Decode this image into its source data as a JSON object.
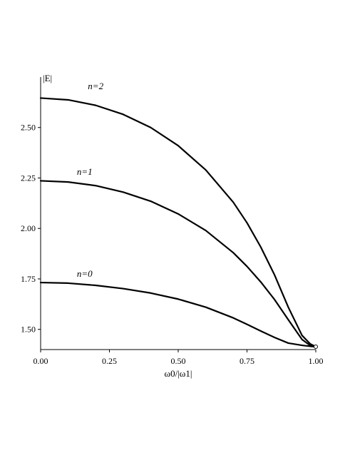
{
  "chart_data": {
    "type": "line",
    "xlabel": "ω0/|ω1|",
    "ylabel": "|E|",
    "xlim": [
      0,
      1
    ],
    "ylim": [
      1.4,
      2.75
    ],
    "x_ticks": [
      "0.00",
      "0.25",
      "0.50",
      "0.75",
      "1.00"
    ],
    "y_ticks": [
      "1.50",
      "1.75",
      "2.00",
      "2.25",
      "2.50"
    ],
    "grid": false,
    "series": [
      {
        "name": "n=0",
        "x": [
          0,
          0.1,
          0.2,
          0.3,
          0.4,
          0.5,
          0.6,
          0.7,
          0.75,
          0.8,
          0.85,
          0.9,
          0.95,
          0.98,
          1.0
        ],
        "y": [
          1.732,
          1.729,
          1.718,
          1.702,
          1.68,
          1.65,
          1.61,
          1.557,
          1.525,
          1.492,
          1.46,
          1.432,
          1.421,
          1.416,
          1.414
        ]
      },
      {
        "name": "n=1",
        "x": [
          0,
          0.1,
          0.2,
          0.3,
          0.4,
          0.5,
          0.6,
          0.7,
          0.75,
          0.8,
          0.85,
          0.9,
          0.95,
          0.98,
          1.0
        ],
        "y": [
          2.236,
          2.23,
          2.212,
          2.18,
          2.135,
          2.072,
          1.99,
          1.88,
          1.812,
          1.735,
          1.648,
          1.548,
          1.45,
          1.42,
          1.414
        ]
      },
      {
        "name": "n=2",
        "x": [
          0,
          0.1,
          0.2,
          0.3,
          0.4,
          0.5,
          0.6,
          0.7,
          0.75,
          0.8,
          0.85,
          0.9,
          0.95,
          0.98,
          1.0
        ],
        "y": [
          2.646,
          2.637,
          2.61,
          2.565,
          2.5,
          2.41,
          2.29,
          2.13,
          2.028,
          1.908,
          1.77,
          1.61,
          1.47,
          1.428,
          1.414
        ]
      }
    ],
    "series_labels": [
      {
        "text": "n=0",
        "x": 0.16,
        "y": 1.76
      },
      {
        "text": "n=1",
        "x": 0.16,
        "y": 2.265
      },
      {
        "text": "n=2",
        "x": 0.2,
        "y": 2.69
      }
    ],
    "end_marker": {
      "x": 1.0,
      "y": 1.414
    },
    "colors": {
      "line": "#000000",
      "axis": "#000000",
      "background": "#ffffff"
    }
  }
}
